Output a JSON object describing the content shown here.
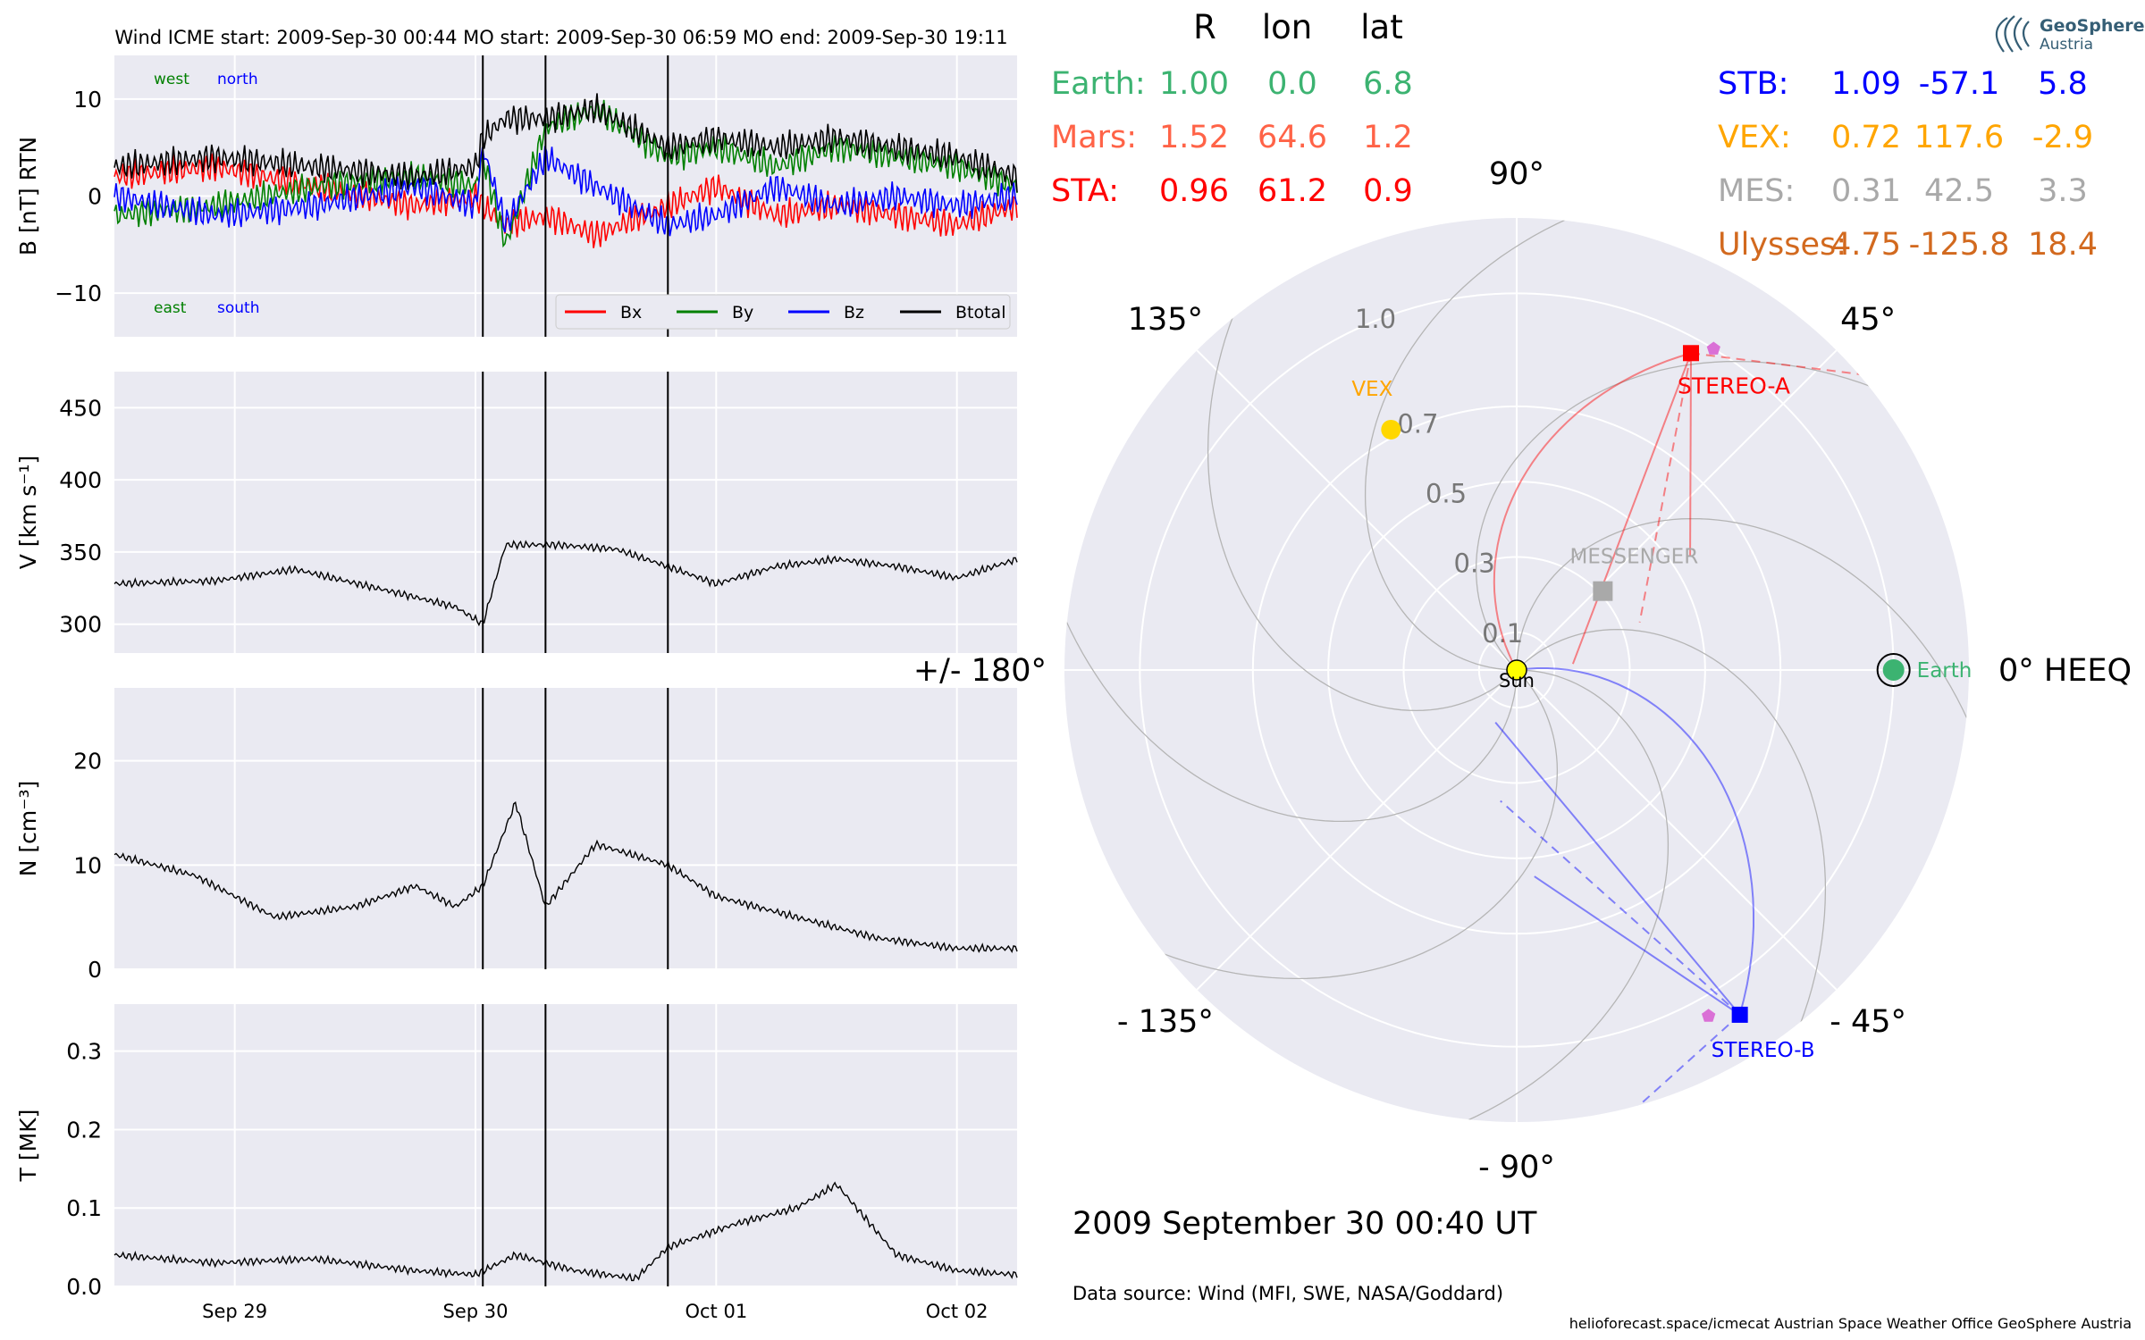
{
  "colors": {
    "panel_bg": "#eaeaf2",
    "grid": "#ffffff",
    "bx": "#ff0000",
    "by": "#008000",
    "bz": "#0000ff",
    "btotal": "#000000",
    "earth": "#3cb371",
    "mars": "#ff6347",
    "sta": "#ff0000",
    "stb": "#0000ff",
    "vex": "#ffa500",
    "mes": "#a9a9a9",
    "ulysses": "#d2691e",
    "sun": "#ffff00",
    "psp_marker": "#da70d6"
  },
  "header": {
    "title": "Wind    ICME start: 2009-Sep-30 00:44   MO start: 2009-Sep-30 06:59   MO end: 2009-Sep-30 19:11"
  },
  "time_axis": {
    "start": "2009-09-28 12:00",
    "end": "2009-10-02 06:00",
    "ticks": [
      {
        "date": "2009-09-29 00:00",
        "label": "Sep 29"
      },
      {
        "date": "2009-09-30 00:00",
        "label": "Sep 30"
      },
      {
        "date": "2009-10-01 00:00",
        "label": "Oct 01"
      },
      {
        "date": "2009-10-02 00:00",
        "label": "Oct 02"
      }
    ]
  },
  "event_lines": [
    {
      "name": "ICME start",
      "date": "2009-09-30 00:44"
    },
    {
      "name": "MO start",
      "date": "2009-09-30 06:59"
    },
    {
      "name": "MO end",
      "date": "2009-09-30 19:11"
    }
  ],
  "chart_data": [
    {
      "type": "line",
      "ylabel": "B [nT] RTN",
      "ylim": [
        -14.5,
        14.5
      ],
      "yticks": [
        10,
        0,
        -10
      ],
      "ytick_labels": [
        "10",
        "0",
        "−10"
      ],
      "grid": true,
      "legend_position": "bottom-right",
      "corner_labels": {
        "west": "west",
        "north": "north",
        "east": "east",
        "south": "south"
      },
      "series": [
        {
          "name": "Bx",
          "x": [
            "2009-09-28 12:00",
            "2009-09-28 22:00",
            "2009-09-29 08:00",
            "2009-09-29 18:00",
            "2009-09-30 00:00",
            "2009-09-30 00:44",
            "2009-09-30 03:00",
            "2009-09-30 06:59",
            "2009-09-30 12:00",
            "2009-09-30 19:11",
            "2009-10-01 00:00",
            "2009-10-01 06:00",
            "2009-10-01 12:00",
            "2009-10-01 18:00",
            "2009-10-02 00:00",
            "2009-10-02 06:00"
          ],
          "values": [
            2,
            3,
            1,
            -1,
            0,
            -1,
            -3,
            -2,
            -4,
            -1,
            1,
            -2,
            -1,
            -2,
            -3,
            -1
          ]
        },
        {
          "name": "By",
          "x": [
            "2009-09-28 12:00",
            "2009-09-28 22:00",
            "2009-09-29 08:00",
            "2009-09-29 18:00",
            "2009-09-30 00:00",
            "2009-09-30 00:44",
            "2009-09-30 03:00",
            "2009-09-30 06:59",
            "2009-09-30 12:00",
            "2009-09-30 19:11",
            "2009-10-01 00:00",
            "2009-10-01 06:00",
            "2009-10-01 12:00",
            "2009-10-01 18:00",
            "2009-10-02 00:00",
            "2009-10-02 06:00"
          ],
          "values": [
            -2,
            -1,
            1,
            2,
            1,
            4,
            -5,
            7,
            9,
            4,
            5,
            3,
            5,
            4,
            3,
            1
          ]
        },
        {
          "name": "Bz",
          "x": [
            "2009-09-28 12:00",
            "2009-09-28 22:00",
            "2009-09-29 08:00",
            "2009-09-29 18:00",
            "2009-09-30 00:00",
            "2009-09-30 00:44",
            "2009-09-30 03:00",
            "2009-09-30 06:59",
            "2009-09-30 12:00",
            "2009-09-30 19:11",
            "2009-10-01 00:00",
            "2009-10-01 06:00",
            "2009-10-01 12:00",
            "2009-10-01 18:00",
            "2009-10-02 00:00",
            "2009-10-02 06:00"
          ],
          "values": [
            0,
            -2,
            -1,
            1,
            -1,
            5,
            -3,
            4,
            1,
            -3,
            -2,
            1,
            -1,
            0,
            -1,
            0
          ]
        },
        {
          "name": "Btotal",
          "x": [
            "2009-09-28 12:00",
            "2009-09-28 22:00",
            "2009-09-29 08:00",
            "2009-09-29 18:00",
            "2009-09-30 00:00",
            "2009-09-30 00:44",
            "2009-09-30 03:00",
            "2009-09-30 06:59",
            "2009-09-30 12:00",
            "2009-09-30 19:11",
            "2009-10-01 00:00",
            "2009-10-01 06:00",
            "2009-10-01 12:00",
            "2009-10-01 18:00",
            "2009-10-02 00:00",
            "2009-10-02 06:00"
          ],
          "values": [
            3,
            4,
            3,
            2,
            3,
            6,
            8,
            8,
            9,
            5,
            6,
            5,
            6,
            5,
            4,
            2
          ]
        }
      ]
    },
    {
      "type": "line",
      "ylabel": "V [km s⁻¹]",
      "ylim": [
        280,
        475
      ],
      "yticks": [
        450,
        400,
        350,
        300
      ],
      "ytick_labels": [
        "450",
        "400",
        "350",
        "300"
      ],
      "grid": true,
      "series": [
        {
          "name": "V",
          "x": [
            "2009-09-28 12:00",
            "2009-09-28 22:00",
            "2009-09-29 06:00",
            "2009-09-29 16:00",
            "2009-09-29 22:00",
            "2009-09-30 00:44",
            "2009-09-30 03:00",
            "2009-09-30 08:00",
            "2009-09-30 14:00",
            "2009-09-30 19:11",
            "2009-10-01 00:00",
            "2009-10-01 06:00",
            "2009-10-01 12:00",
            "2009-10-01 18:00",
            "2009-10-02 00:00",
            "2009-10-02 06:00"
          ],
          "values": [
            328,
            330,
            338,
            322,
            312,
            300,
            355,
            355,
            352,
            340,
            328,
            340,
            345,
            340,
            332,
            345
          ]
        }
      ]
    },
    {
      "type": "line",
      "ylabel": "N [cm⁻³]",
      "ylim": [
        0,
        27
      ],
      "yticks": [
        20,
        10,
        0
      ],
      "ytick_labels": [
        "20",
        "10",
        "0"
      ],
      "grid": true,
      "series": [
        {
          "name": "N",
          "x": [
            "2009-09-28 12:00",
            "2009-09-28 20:00",
            "2009-09-29 04:00",
            "2009-09-29 12:00",
            "2009-09-29 18:00",
            "2009-09-29 22:00",
            "2009-09-30 00:44",
            "2009-09-30 04:00",
            "2009-09-30 06:59",
            "2009-09-30 12:00",
            "2009-09-30 19:11",
            "2009-10-01 00:00",
            "2009-10-01 08:00",
            "2009-10-01 16:00",
            "2009-10-02 00:00",
            "2009-10-02 06:00"
          ],
          "values": [
            11,
            9,
            5,
            6,
            8,
            6,
            8,
            16,
            6,
            12,
            10,
            7,
            5,
            3,
            2,
            2
          ]
        }
      ]
    },
    {
      "type": "line",
      "ylabel": "T [MK]",
      "ylim": [
        0,
        0.36
      ],
      "yticks": [
        0.3,
        0.2,
        0.1,
        0.0
      ],
      "ytick_labels": [
        "0.3",
        "0.2",
        "0.1",
        "0.0"
      ],
      "grid": true,
      "series": [
        {
          "name": "T",
          "x": [
            "2009-09-28 12:00",
            "2009-09-28 22:00",
            "2009-09-29 08:00",
            "2009-09-29 18:00",
            "2009-09-30 00:00",
            "2009-09-30 04:00",
            "2009-09-30 10:00",
            "2009-09-30 16:00",
            "2009-09-30 19:11",
            "2009-10-01 02:00",
            "2009-10-01 08:00",
            "2009-10-01 12:00",
            "2009-10-01 18:00",
            "2009-10-02 00:00",
            "2009-10-02 06:00"
          ],
          "values": [
            0.04,
            0.03,
            0.035,
            0.02,
            0.015,
            0.04,
            0.02,
            0.01,
            0.05,
            0.08,
            0.1,
            0.13,
            0.04,
            0.02,
            0.015
          ]
        }
      ]
    },
    {
      "type": "scatter",
      "polar": true,
      "title": "2009 September 30  00:40 UT",
      "frame_label": "0° HEEQ",
      "angle_labels": [
        {
          "deg": 90,
          "label": "90°"
        },
        {
          "deg": 45,
          "label": "45°"
        },
        {
          "deg": 0,
          "label": "0° HEEQ"
        },
        {
          "deg": -45,
          "label": "- 45°"
        },
        {
          "deg": -90,
          "label": "- 90°"
        },
        {
          "deg": -135,
          "label": "- 135°"
        },
        {
          "deg": 180,
          "label": "+/- 180°"
        },
        {
          "deg": 135,
          "label": "135°"
        }
      ],
      "radial_ticks": [
        {
          "r": 0.1,
          "label": "0.1"
        },
        {
          "r": 0.3,
          "label": "0.3"
        },
        {
          "r": 0.5,
          "label": "0.5"
        },
        {
          "r": 0.7,
          "label": "0.7"
        },
        {
          "r": 1.0,
          "label": "1.0"
        }
      ],
      "rmax": 1.2,
      "bodies": [
        {
          "name": "Sun",
          "label": "Sun",
          "r": 0.0,
          "lon": 0.0
        },
        {
          "name": "Earth",
          "label": "Earth",
          "r": 1.0,
          "lon": 0.0
        },
        {
          "name": "STA",
          "label": "STEREO-A",
          "r": 0.96,
          "lon": 61.2
        },
        {
          "name": "STB",
          "label": "STEREO-B",
          "r": 1.09,
          "lon": -57.1
        },
        {
          "name": "VEX",
          "label": "VEX",
          "r": 0.72,
          "lon": 117.6
        },
        {
          "name": "MES",
          "label": "MESSENGER",
          "r": 0.31,
          "lon": 42.5
        }
      ],
      "extra_markers": [
        {
          "name": "psp-sta",
          "r": 1.0,
          "lon": 58.5
        },
        {
          "name": "psp-stb",
          "r": 1.05,
          "lon": -61.0
        }
      ]
    }
  ],
  "position_table": {
    "headers": [
      "R",
      "lon",
      "lat"
    ],
    "left_rows": [
      {
        "name": "Earth:",
        "r": "1.00",
        "lon": "0.0",
        "lat": "6.8",
        "color": "#3cb371"
      },
      {
        "name": "Mars:",
        "r": "1.52",
        "lon": "64.6",
        "lat": "1.2",
        "color": "#ff6347"
      },
      {
        "name": "STA:",
        "r": "0.96",
        "lon": "61.2",
        "lat": "0.9",
        "color": "#ff0000"
      }
    ],
    "right_rows": [
      {
        "name": "STB:",
        "r": "1.09",
        "lon": "-57.1",
        "lat": "5.8",
        "color": "#0000ff"
      },
      {
        "name": "VEX:",
        "r": "0.72",
        "lon": "117.6",
        "lat": "-2.9",
        "color": "#ffa500"
      },
      {
        "name": "MES:",
        "r": "0.31",
        "lon": "42.5",
        "lat": "3.3",
        "color": "#a9a9a9"
      },
      {
        "name": "Ulysses:",
        "r": "4.75",
        "lon": "-125.8",
        "lat": "18.4",
        "color": "#d2691e"
      }
    ]
  },
  "logo": {
    "line1": "GeoSphere",
    "line2": "Austria"
  },
  "footer": {
    "data_source": "Data source: Wind (MFI, SWE, NASA/Goddard)",
    "credits": "helioforecast.space/icmecat   Austrian Space Weather Office   GeoSphere Austria"
  }
}
